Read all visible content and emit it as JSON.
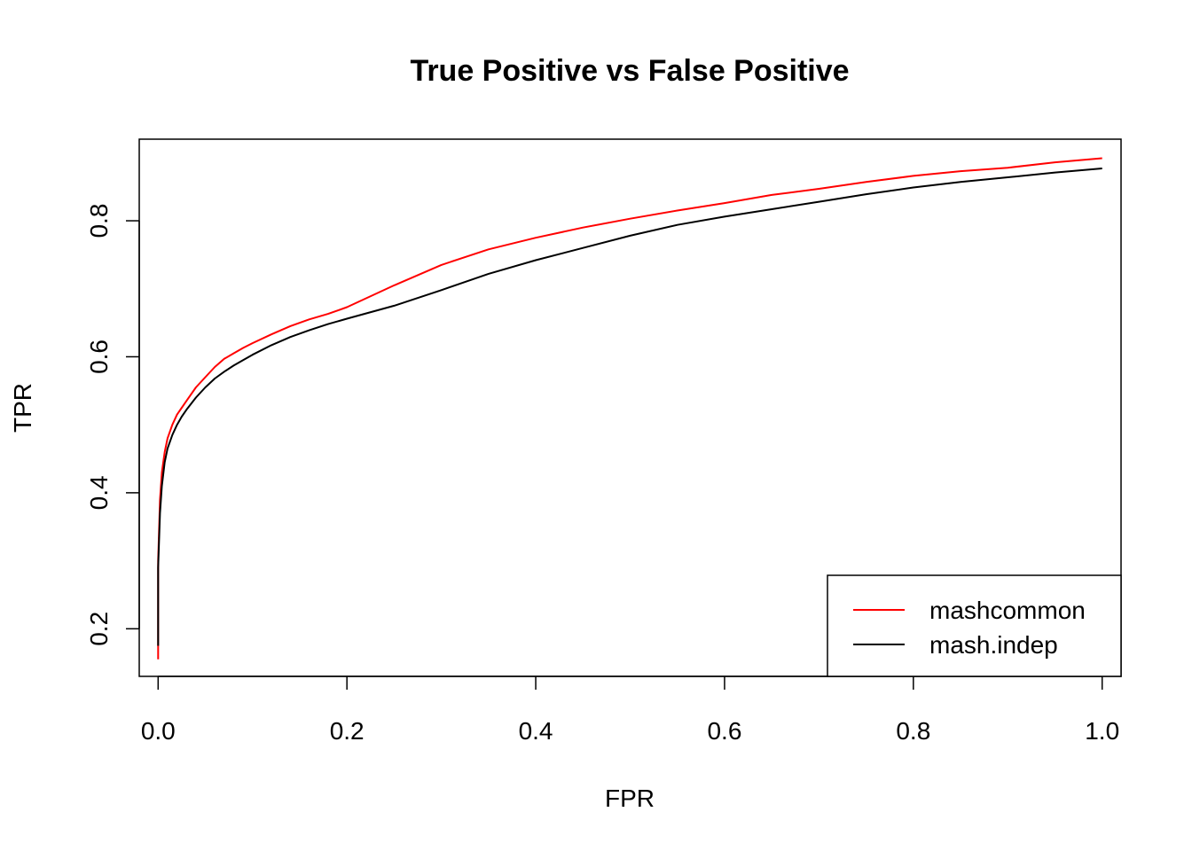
{
  "chart_data": {
    "type": "line",
    "title": "True Positive vs False Positive",
    "xlabel": "FPR",
    "ylabel": "TPR",
    "xlim": [
      -0.02,
      1.02
    ],
    "ylim": [
      0.13,
      0.92
    ],
    "xticks": [
      "0.0",
      "0.2",
      "0.4",
      "0.6",
      "0.8",
      "1.0"
    ],
    "xtick_values": [
      0,
      0.2,
      0.4,
      0.6,
      0.8,
      1.0
    ],
    "yticks": [
      "0.2",
      "0.4",
      "0.6",
      "0.8"
    ],
    "ytick_values": [
      0.2,
      0.4,
      0.6,
      0.8
    ],
    "grid": false,
    "legend_position": "bottom-right",
    "series": [
      {
        "name": "mashcommon",
        "color": "#ff0000",
        "x": [
          0,
          0,
          0.002,
          0.004,
          0.007,
          0.01,
          0.015,
          0.02,
          0.025,
          0.03,
          0.04,
          0.05,
          0.06,
          0.07,
          0.08,
          0.09,
          0.1,
          0.12,
          0.14,
          0.16,
          0.18,
          0.2,
          0.25,
          0.3,
          0.35,
          0.4,
          0.45,
          0.5,
          0.55,
          0.6,
          0.65,
          0.7,
          0.75,
          0.8,
          0.85,
          0.9,
          0.95,
          1.0
        ],
        "y": [
          0.155,
          0.3,
          0.39,
          0.43,
          0.46,
          0.48,
          0.5,
          0.515,
          0.525,
          0.535,
          0.555,
          0.57,
          0.585,
          0.597,
          0.605,
          0.613,
          0.62,
          0.633,
          0.645,
          0.655,
          0.663,
          0.673,
          0.705,
          0.735,
          0.758,
          0.775,
          0.79,
          0.803,
          0.815,
          0.826,
          0.838,
          0.847,
          0.857,
          0.866,
          0.873,
          0.878,
          0.886,
          0.892
        ]
      },
      {
        "name": "mash.indep",
        "color": "#000000",
        "x": [
          0,
          0,
          0.002,
          0.004,
          0.007,
          0.01,
          0.015,
          0.02,
          0.025,
          0.03,
          0.04,
          0.05,
          0.06,
          0.07,
          0.08,
          0.09,
          0.1,
          0.12,
          0.14,
          0.16,
          0.18,
          0.2,
          0.25,
          0.3,
          0.35,
          0.4,
          0.45,
          0.5,
          0.55,
          0.6,
          0.65,
          0.7,
          0.75,
          0.8,
          0.85,
          0.9,
          0.95,
          1.0
        ],
        "y": [
          0.175,
          0.29,
          0.37,
          0.41,
          0.445,
          0.465,
          0.485,
          0.5,
          0.512,
          0.522,
          0.54,
          0.555,
          0.568,
          0.578,
          0.587,
          0.595,
          0.603,
          0.617,
          0.629,
          0.639,
          0.648,
          0.656,
          0.675,
          0.698,
          0.722,
          0.742,
          0.76,
          0.778,
          0.794,
          0.806,
          0.817,
          0.828,
          0.839,
          0.849,
          0.857,
          0.864,
          0.871,
          0.877
        ]
      }
    ]
  }
}
